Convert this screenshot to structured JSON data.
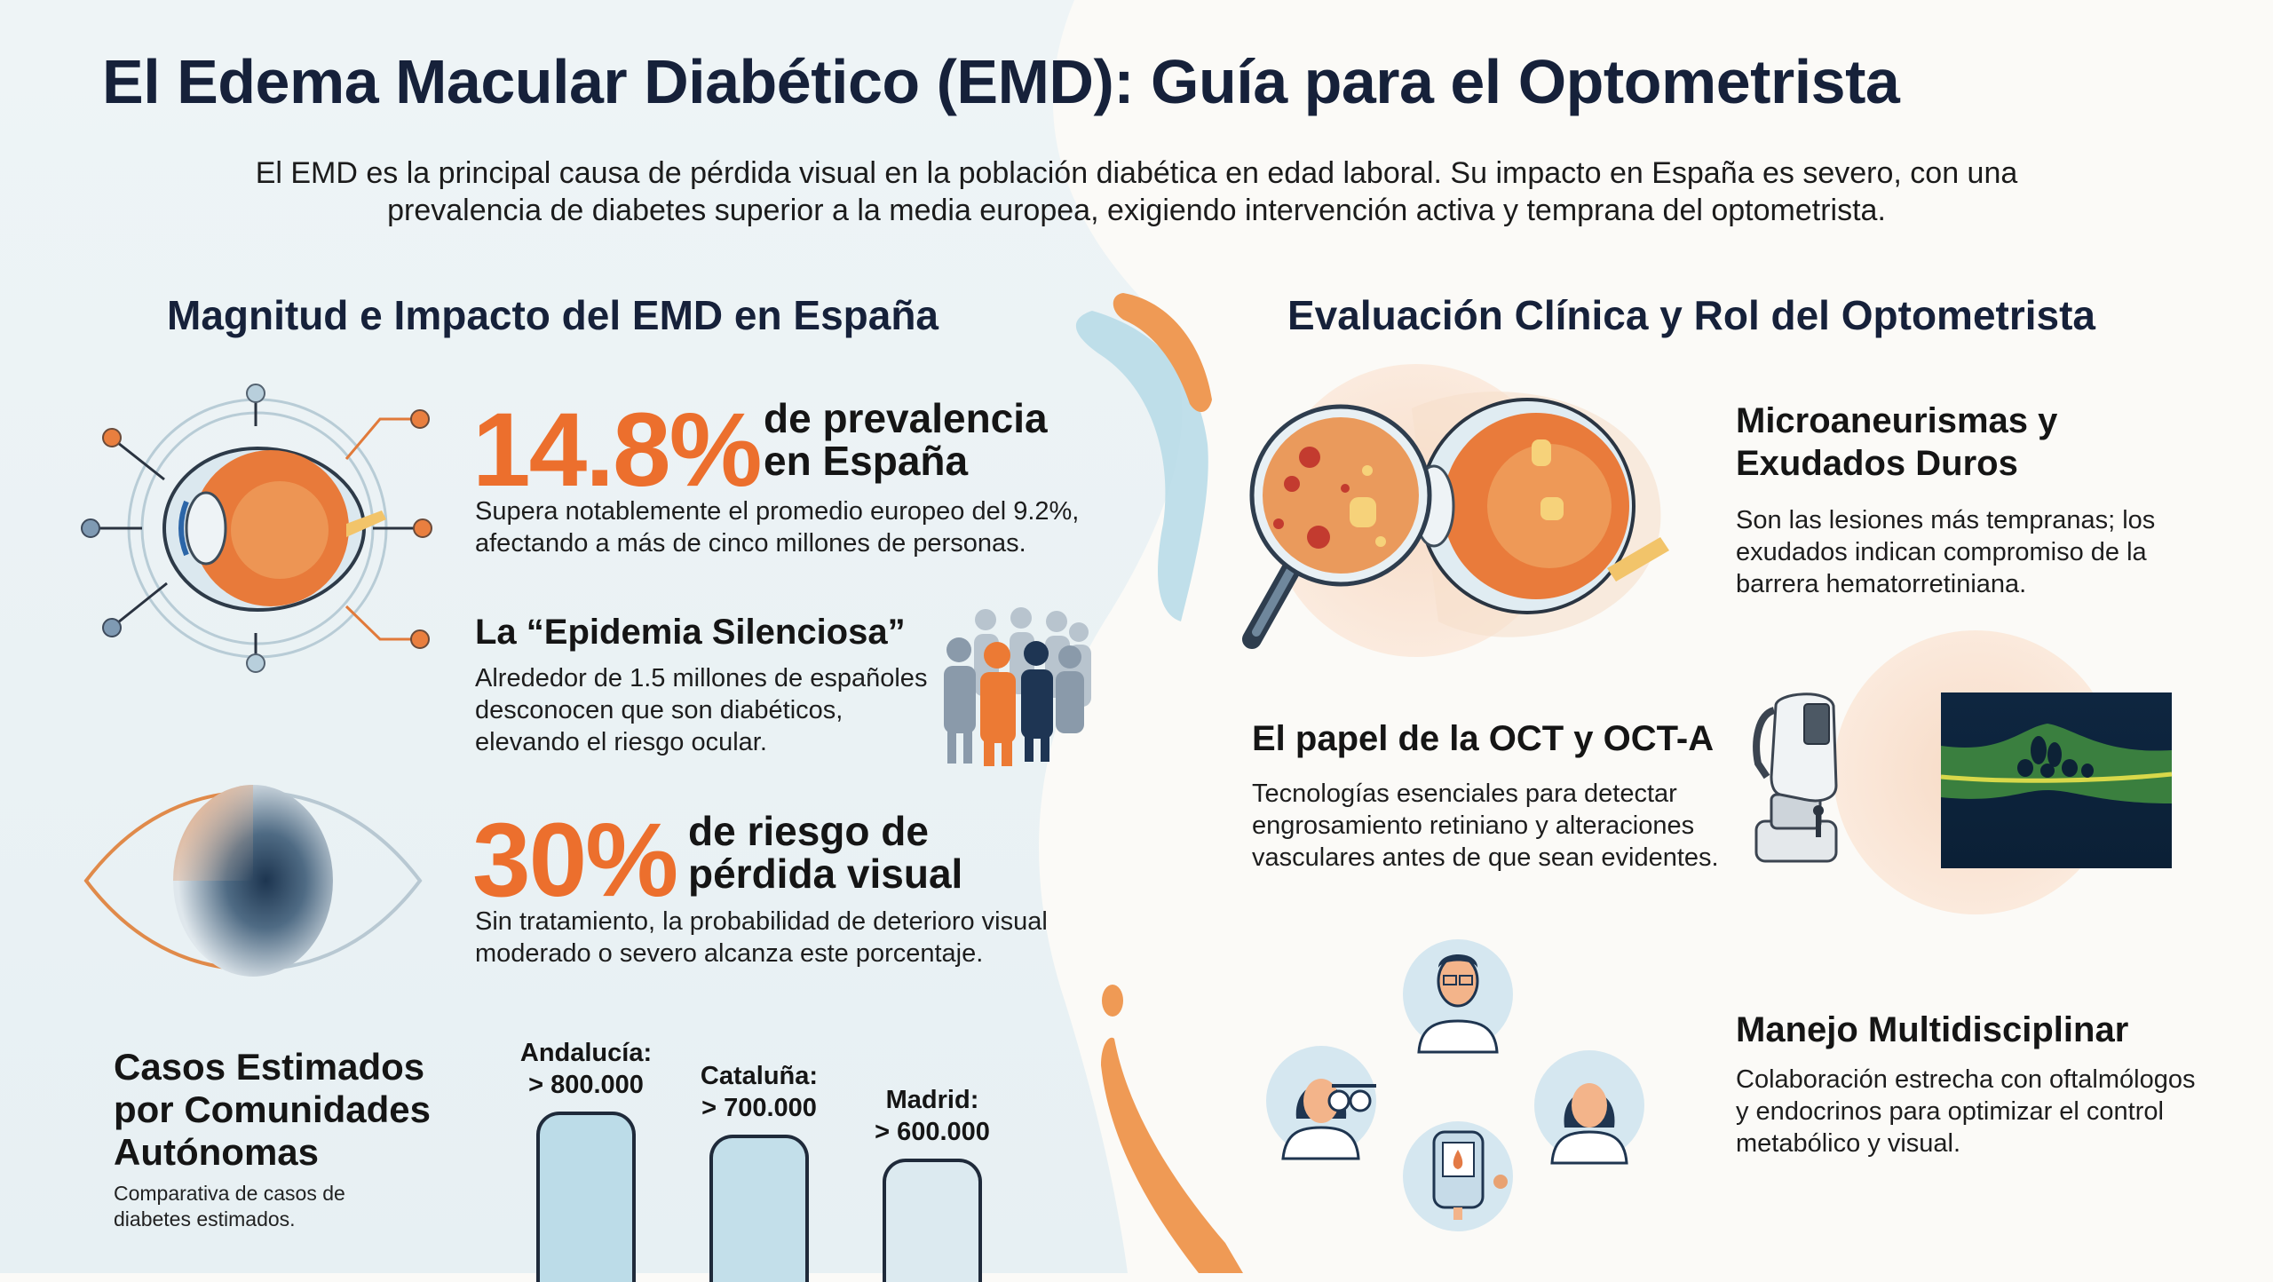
{
  "header": {
    "title": "El Edema Macular Diabético (EMD): Guía para el Optometrista",
    "intro_lines": [
      "El EMD es la principal causa de pérdida visual en la población diabética en edad laboral. Su impacto en España es severo, con una",
      "prevalencia de diabetes superior a la media europea, exigiendo intervención activa y temprana del optometrista."
    ]
  },
  "left": {
    "heading": "Magnitud e Impacto del EMD en España",
    "prevalence": {
      "value": "14.8%",
      "label_lines": [
        "de prevalencia",
        "en España"
      ],
      "desc_lines": [
        "Supera notablemente el promedio europeo del 9.2%,",
        "afectando a más de cinco millones de personas."
      ]
    },
    "silent": {
      "title": "La “Epidemia Silenciosa”",
      "desc_lines": [
        "Alrededor de 1.5 millones de españoles",
        "desconocen que son diabéticos,",
        "elevando el riesgo ocular."
      ]
    },
    "risk": {
      "value": "30%",
      "label_lines": [
        "de riesgo de",
        "pérdida visual"
      ],
      "desc_lines": [
        "Sin tratamiento, la probabilidad de deterioro visual",
        "moderado o severo alcanza este porcentaje."
      ]
    },
    "cases": {
      "title_lines": [
        "Casos Estimados",
        "por Comunidades",
        "Autónomas"
      ],
      "desc_lines": [
        "Comparativa de casos de",
        "diabetes estimados."
      ]
    }
  },
  "chart_data": {
    "type": "bar",
    "title": "Casos Estimados por Comunidades Autónomas",
    "subtitle": "Comparativa de casos de diabetes estimados.",
    "categories": [
      "Andalucía",
      "Cataluña",
      "Madrid"
    ],
    "values": [
      800000,
      700000,
      600000
    ],
    "data_labels": [
      [
        "Andalucía:",
        "> 800.000"
      ],
      [
        "Cataluña:",
        "> 700.000"
      ],
      [
        "Madrid:",
        "> 600.000"
      ]
    ],
    "xlabel": "",
    "ylabel": "",
    "grid": false,
    "colors": [
      "#bcdce8",
      "#c3dfea",
      "#dceaf0"
    ]
  },
  "right": {
    "heading": "Evaluación Clínica y Rol del Optometrista",
    "micro": {
      "title_lines": [
        "Microaneurismas y",
        "Exudados Duros"
      ],
      "desc_lines": [
        "Son las lesiones más tempranas; los",
        "exudados indican compromiso de la",
        "barrera hematorretiniana."
      ]
    },
    "oct": {
      "title": "El papel de la OCT y OCT-A",
      "desc_lines": [
        "Tecnologías esenciales para detectar",
        "engrosamiento retiniano y alteraciones",
        "vasculares antes de que sean evidentes."
      ]
    },
    "multi": {
      "title": "Manejo Multidisciplinar",
      "desc_lines": [
        "Colaboración estrecha con oftalmólogos",
        "y endocrinos para optimizar el control",
        "metabólico y visual."
      ]
    }
  },
  "colors": {
    "accent_orange": "#ec6f2d",
    "navy": "#16213a",
    "light_blue": "#a9d3e3",
    "left_bg": "#eaf2f5",
    "right_bg": "#fbfaf7"
  }
}
